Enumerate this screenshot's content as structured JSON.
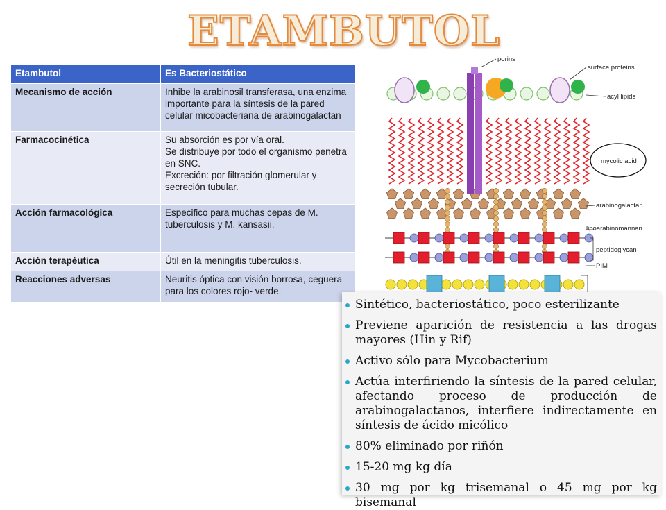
{
  "title": "ETAMBUTOL",
  "table": {
    "header": [
      "Etambutol",
      "Es Bacteriostático"
    ],
    "rows": [
      {
        "label": "Mecanismo de acción",
        "text": "Inhibe la arabinosil transferasa, una enzima importante para la síntesis de la pared celular micobacteriana de arabinogalactan"
      },
      {
        "label": "Farmacocinética",
        "text": "Su absorción es por vía oral.\nSe distribuye por todo el organismo penetra en SNC.\nExcreción: por filtración glomerular y secreción tubular."
      },
      {
        "label": "Acción farmacológica",
        "text": "Especifico para muchas cepas de M. tuberculosis y M. kansasii."
      },
      {
        "label": "Acción terapéutica",
        "text": "Útil en la meningitis tuberculosis."
      },
      {
        "label": "Reacciones adversas",
        "text": "Neuritis óptica con visión borrosa, ceguera para los colores rojo- verde."
      }
    ]
  },
  "diagram": {
    "labels": {
      "porins": "porins",
      "surface_proteins": "surface proteins",
      "acyl_lipids": "acyl lipids",
      "mycolic_acid": "mycolic acid",
      "arabinogalactan": "arabinogalactan",
      "lipoarabinomannan": "lipoarabinomannan",
      "peptidoglycan": "peptidoglycan",
      "pim": "PIM"
    }
  },
  "bullets": [
    "Sintético, bacteriostático, poco esterilizante",
    "Previene aparición de resistencia a las drogas mayores (Hin y Rif)",
    "Activo sólo para Mycobacterium",
    "Actúa interfiriendo la síntesis de la pared celular, afectando proceso de producción de arabinogalactanos, interfiere indirectamente en síntesis de ácido micólico",
    "80% eliminado por riñón",
    "15-20 mg kg día",
    "30 mg por kg trisemanal o 45 mg por kg bisemanal"
  ],
  "colors": {
    "table_header": "#3b64c8",
    "row_dark": "#ccd4ec",
    "row_light": "#e8ebf6",
    "bullet": "#2aa6c8",
    "title_outline": "#e38a3c"
  }
}
